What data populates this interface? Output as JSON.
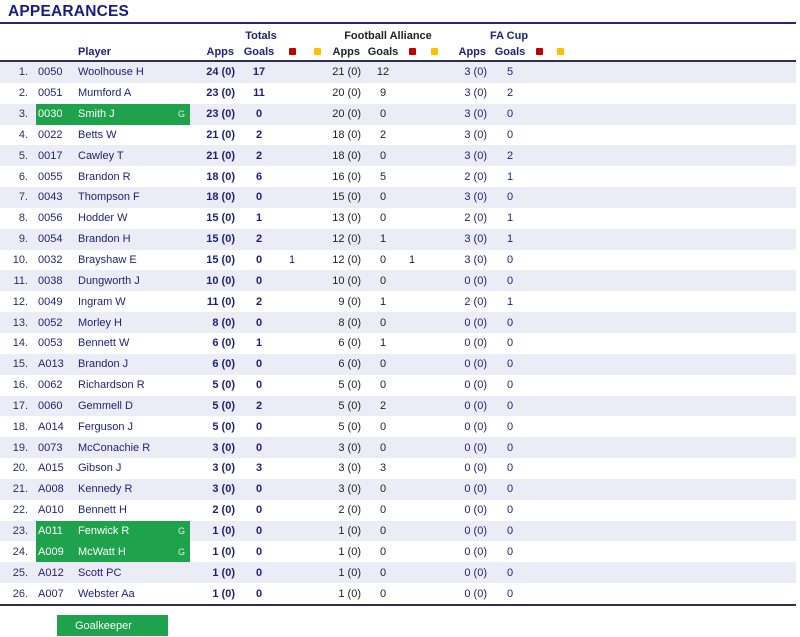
{
  "title": "APPEARANCES",
  "header": {
    "player_label": "Player",
    "groups": [
      {
        "label": "Totals"
      },
      {
        "label": "Football Alliance"
      },
      {
        "label": "FA Cup"
      }
    ],
    "apps_label": "Apps",
    "goals_label": "Goals",
    "red_card_icon": "red-square",
    "yellow_card_icon": "yellow-square"
  },
  "legend": {
    "goalkeeper_label": "Goalkeeper"
  },
  "colors": {
    "navy": "#1e1e7e",
    "black": "#222228",
    "goalkeeper_green": "#1fa24c",
    "red_card": "#c00000",
    "yellow_card": "#ffc000",
    "row_stripe": "#ececf6"
  },
  "rows": [
    {
      "num": "1.",
      "code": "0050",
      "name": "Woolhouse H",
      "gk": false,
      "flag": "",
      "t_apps": "24 (0)",
      "t_goals": "17",
      "t_red": "",
      "t_yellow": "",
      "fa_apps": "21 (0)",
      "fa_goals": "12",
      "fa_red": "",
      "fa_yellow": "",
      "fc_apps": "3 (0)",
      "fc_goals": "5",
      "fc_red": "",
      "fc_yellow": ""
    },
    {
      "num": "2.",
      "code": "0051",
      "name": "Mumford A",
      "gk": false,
      "flag": "",
      "t_apps": "23 (0)",
      "t_goals": "11",
      "t_red": "",
      "t_yellow": "",
      "fa_apps": "20 (0)",
      "fa_goals": "9",
      "fa_red": "",
      "fa_yellow": "",
      "fc_apps": "3 (0)",
      "fc_goals": "2",
      "fc_red": "",
      "fc_yellow": ""
    },
    {
      "num": "3.",
      "code": "0030",
      "name": "Smith J",
      "gk": true,
      "flag": "G",
      "t_apps": "23 (0)",
      "t_goals": "0",
      "t_red": "",
      "t_yellow": "",
      "fa_apps": "20 (0)",
      "fa_goals": "0",
      "fa_red": "",
      "fa_yellow": "",
      "fc_apps": "3 (0)",
      "fc_goals": "0",
      "fc_red": "",
      "fc_yellow": ""
    },
    {
      "num": "4.",
      "code": "0022",
      "name": "Betts W",
      "gk": false,
      "flag": "",
      "t_apps": "21 (0)",
      "t_goals": "2",
      "t_red": "",
      "t_yellow": "",
      "fa_apps": "18 (0)",
      "fa_goals": "2",
      "fa_red": "",
      "fa_yellow": "",
      "fc_apps": "3 (0)",
      "fc_goals": "0",
      "fc_red": "",
      "fc_yellow": ""
    },
    {
      "num": "5.",
      "code": "0017",
      "name": "Cawley T",
      "gk": false,
      "flag": "",
      "t_apps": "21 (0)",
      "t_goals": "2",
      "t_red": "",
      "t_yellow": "",
      "fa_apps": "18 (0)",
      "fa_goals": "0",
      "fa_red": "",
      "fa_yellow": "",
      "fc_apps": "3 (0)",
      "fc_goals": "2",
      "fc_red": "",
      "fc_yellow": ""
    },
    {
      "num": "6.",
      "code": "0055",
      "name": "Brandon R",
      "gk": false,
      "flag": "",
      "t_apps": "18 (0)",
      "t_goals": "6",
      "t_red": "",
      "t_yellow": "",
      "fa_apps": "16 (0)",
      "fa_goals": "5",
      "fa_red": "",
      "fa_yellow": "",
      "fc_apps": "2 (0)",
      "fc_goals": "1",
      "fc_red": "",
      "fc_yellow": ""
    },
    {
      "num": "7.",
      "code": "0043",
      "name": "Thompson F",
      "gk": false,
      "flag": "",
      "t_apps": "18 (0)",
      "t_goals": "0",
      "t_red": "",
      "t_yellow": "",
      "fa_apps": "15 (0)",
      "fa_goals": "0",
      "fa_red": "",
      "fa_yellow": "",
      "fc_apps": "3 (0)",
      "fc_goals": "0",
      "fc_red": "",
      "fc_yellow": ""
    },
    {
      "num": "8.",
      "code": "0056",
      "name": "Hodder W",
      "gk": false,
      "flag": "",
      "t_apps": "15 (0)",
      "t_goals": "1",
      "t_red": "",
      "t_yellow": "",
      "fa_apps": "13 (0)",
      "fa_goals": "0",
      "fa_red": "",
      "fa_yellow": "",
      "fc_apps": "2 (0)",
      "fc_goals": "1",
      "fc_red": "",
      "fc_yellow": ""
    },
    {
      "num": "9.",
      "code": "0054",
      "name": "Brandon H",
      "gk": false,
      "flag": "",
      "t_apps": "15 (0)",
      "t_goals": "2",
      "t_red": "",
      "t_yellow": "",
      "fa_apps": "12 (0)",
      "fa_goals": "1",
      "fa_red": "",
      "fa_yellow": "",
      "fc_apps": "3 (0)",
      "fc_goals": "1",
      "fc_red": "",
      "fc_yellow": ""
    },
    {
      "num": "10.",
      "code": "0032",
      "name": "Brayshaw E",
      "gk": false,
      "flag": "",
      "t_apps": "15 (0)",
      "t_goals": "0",
      "t_red": "1",
      "t_yellow": "",
      "fa_apps": "12 (0)",
      "fa_goals": "0",
      "fa_red": "1",
      "fa_yellow": "",
      "fc_apps": "3 (0)",
      "fc_goals": "0",
      "fc_red": "",
      "fc_yellow": ""
    },
    {
      "num": "11.",
      "code": "0038",
      "name": "Dungworth J",
      "gk": false,
      "flag": "",
      "t_apps": "10 (0)",
      "t_goals": "0",
      "t_red": "",
      "t_yellow": "",
      "fa_apps": "10 (0)",
      "fa_goals": "0",
      "fa_red": "",
      "fa_yellow": "",
      "fc_apps": "0 (0)",
      "fc_goals": "0",
      "fc_red": "",
      "fc_yellow": ""
    },
    {
      "num": "12.",
      "code": "0049",
      "name": "Ingram W",
      "gk": false,
      "flag": "",
      "t_apps": "11 (0)",
      "t_goals": "2",
      "t_red": "",
      "t_yellow": "",
      "fa_apps": "9 (0)",
      "fa_goals": "1",
      "fa_red": "",
      "fa_yellow": "",
      "fc_apps": "2 (0)",
      "fc_goals": "1",
      "fc_red": "",
      "fc_yellow": ""
    },
    {
      "num": "13.",
      "code": "0052",
      "name": "Morley H",
      "gk": false,
      "flag": "",
      "t_apps": "8 (0)",
      "t_goals": "0",
      "t_red": "",
      "t_yellow": "",
      "fa_apps": "8 (0)",
      "fa_goals": "0",
      "fa_red": "",
      "fa_yellow": "",
      "fc_apps": "0 (0)",
      "fc_goals": "0",
      "fc_red": "",
      "fc_yellow": ""
    },
    {
      "num": "14.",
      "code": "0053",
      "name": "Bennett W",
      "gk": false,
      "flag": "",
      "t_apps": "6 (0)",
      "t_goals": "1",
      "t_red": "",
      "t_yellow": "",
      "fa_apps": "6 (0)",
      "fa_goals": "1",
      "fa_red": "",
      "fa_yellow": "",
      "fc_apps": "0 (0)",
      "fc_goals": "0",
      "fc_red": "",
      "fc_yellow": ""
    },
    {
      "num": "15.",
      "code": "A013",
      "name": "Brandon J",
      "gk": false,
      "flag": "",
      "t_apps": "6 (0)",
      "t_goals": "0",
      "t_red": "",
      "t_yellow": "",
      "fa_apps": "6 (0)",
      "fa_goals": "0",
      "fa_red": "",
      "fa_yellow": "",
      "fc_apps": "0 (0)",
      "fc_goals": "0",
      "fc_red": "",
      "fc_yellow": ""
    },
    {
      "num": "16.",
      "code": "0062",
      "name": "Richardson R",
      "gk": false,
      "flag": "",
      "t_apps": "5 (0)",
      "t_goals": "0",
      "t_red": "",
      "t_yellow": "",
      "fa_apps": "5 (0)",
      "fa_goals": "0",
      "fa_red": "",
      "fa_yellow": "",
      "fc_apps": "0 (0)",
      "fc_goals": "0",
      "fc_red": "",
      "fc_yellow": ""
    },
    {
      "num": "17.",
      "code": "0060",
      "name": "Gemmell D",
      "gk": false,
      "flag": "",
      "t_apps": "5 (0)",
      "t_goals": "2",
      "t_red": "",
      "t_yellow": "",
      "fa_apps": "5 (0)",
      "fa_goals": "2",
      "fa_red": "",
      "fa_yellow": "",
      "fc_apps": "0 (0)",
      "fc_goals": "0",
      "fc_red": "",
      "fc_yellow": ""
    },
    {
      "num": "18.",
      "code": "A014",
      "name": "Ferguson J",
      "gk": false,
      "flag": "",
      "t_apps": "5 (0)",
      "t_goals": "0",
      "t_red": "",
      "t_yellow": "",
      "fa_apps": "5 (0)",
      "fa_goals": "0",
      "fa_red": "",
      "fa_yellow": "",
      "fc_apps": "0 (0)",
      "fc_goals": "0",
      "fc_red": "",
      "fc_yellow": ""
    },
    {
      "num": "19.",
      "code": "0073",
      "name": "McConachie R",
      "gk": false,
      "flag": "",
      "t_apps": "3 (0)",
      "t_goals": "0",
      "t_red": "",
      "t_yellow": "",
      "fa_apps": "3 (0)",
      "fa_goals": "0",
      "fa_red": "",
      "fa_yellow": "",
      "fc_apps": "0 (0)",
      "fc_goals": "0",
      "fc_red": "",
      "fc_yellow": ""
    },
    {
      "num": "20.",
      "code": "A015",
      "name": "Gibson J",
      "gk": false,
      "flag": "",
      "t_apps": "3 (0)",
      "t_goals": "3",
      "t_red": "",
      "t_yellow": "",
      "fa_apps": "3 (0)",
      "fa_goals": "3",
      "fa_red": "",
      "fa_yellow": "",
      "fc_apps": "0 (0)",
      "fc_goals": "0",
      "fc_red": "",
      "fc_yellow": ""
    },
    {
      "num": "21.",
      "code": "A008",
      "name": "Kennedy R",
      "gk": false,
      "flag": "",
      "t_apps": "3 (0)",
      "t_goals": "0",
      "t_red": "",
      "t_yellow": "",
      "fa_apps": "3 (0)",
      "fa_goals": "0",
      "fa_red": "",
      "fa_yellow": "",
      "fc_apps": "0 (0)",
      "fc_goals": "0",
      "fc_red": "",
      "fc_yellow": ""
    },
    {
      "num": "22.",
      "code": "A010",
      "name": "Bennett H",
      "gk": false,
      "flag": "",
      "t_apps": "2 (0)",
      "t_goals": "0",
      "t_red": "",
      "t_yellow": "",
      "fa_apps": "2 (0)",
      "fa_goals": "0",
      "fa_red": "",
      "fa_yellow": "",
      "fc_apps": "0 (0)",
      "fc_goals": "0",
      "fc_red": "",
      "fc_yellow": ""
    },
    {
      "num": "23.",
      "code": "A011",
      "name": "Fenwick R",
      "gk": true,
      "flag": "G",
      "t_apps": "1 (0)",
      "t_goals": "0",
      "t_red": "",
      "t_yellow": "",
      "fa_apps": "1 (0)",
      "fa_goals": "0",
      "fa_red": "",
      "fa_yellow": "",
      "fc_apps": "0 (0)",
      "fc_goals": "0",
      "fc_red": "",
      "fc_yellow": ""
    },
    {
      "num": "24.",
      "code": "A009",
      "name": "McWatt H",
      "gk": true,
      "flag": "G",
      "t_apps": "1 (0)",
      "t_goals": "0",
      "t_red": "",
      "t_yellow": "",
      "fa_apps": "1 (0)",
      "fa_goals": "0",
      "fa_red": "",
      "fa_yellow": "",
      "fc_apps": "0 (0)",
      "fc_goals": "0",
      "fc_red": "",
      "fc_yellow": ""
    },
    {
      "num": "25.",
      "code": "A012",
      "name": "Scott PC",
      "gk": false,
      "flag": "",
      "t_apps": "1 (0)",
      "t_goals": "0",
      "t_red": "",
      "t_yellow": "",
      "fa_apps": "1 (0)",
      "fa_goals": "0",
      "fa_red": "",
      "fa_yellow": "",
      "fc_apps": "0 (0)",
      "fc_goals": "0",
      "fc_red": "",
      "fc_yellow": ""
    },
    {
      "num": "26.",
      "code": "A007",
      "name": "Webster Aa",
      "gk": false,
      "flag": "",
      "t_apps": "1 (0)",
      "t_goals": "0",
      "t_red": "",
      "t_yellow": "",
      "fa_apps": "1 (0)",
      "fa_goals": "0",
      "fa_red": "",
      "fa_yellow": "",
      "fc_apps": "0 (0)",
      "fc_goals": "0",
      "fc_red": "",
      "fc_yellow": ""
    }
  ]
}
